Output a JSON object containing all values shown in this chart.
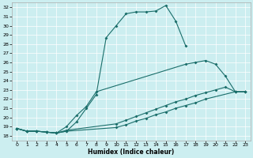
{
  "xlabel": "Humidex (Indice chaleur)",
  "bg_color": "#cceef0",
  "line_color": "#1a6e6a",
  "grid_color": "#ffffff",
  "xlim": [
    -0.5,
    23.5
  ],
  "ylim": [
    17.5,
    32.5
  ],
  "xticks": [
    0,
    1,
    2,
    3,
    4,
    5,
    6,
    7,
    8,
    9,
    10,
    11,
    12,
    13,
    14,
    15,
    16,
    17,
    18,
    19,
    20,
    21,
    22,
    23
  ],
  "yticks": [
    18,
    19,
    20,
    21,
    22,
    23,
    24,
    25,
    26,
    27,
    28,
    29,
    30,
    31,
    32
  ],
  "curve1_x": [
    0,
    1,
    2,
    3,
    4,
    5,
    6,
    7,
    8,
    9,
    10,
    11,
    12,
    13,
    14,
    15,
    16,
    17
  ],
  "curve1_y": [
    18.8,
    18.5,
    18.5,
    18.4,
    18.3,
    18.5,
    19.5,
    21.0,
    22.5,
    28.7,
    30.0,
    31.3,
    31.5,
    31.5,
    31.6,
    32.2,
    30.5,
    27.8
  ],
  "curve2_x": [
    0,
    1,
    2,
    3,
    4,
    5,
    6,
    7,
    8,
    17,
    18,
    19,
    20,
    21,
    22,
    23
  ],
  "curve2_y": [
    18.8,
    18.5,
    18.5,
    18.4,
    18.3,
    19.0,
    20.2,
    21.2,
    22.8,
    25.8,
    26.0,
    26.2,
    25.8,
    24.5,
    22.8,
    22.8
  ],
  "curve3_x": [
    0,
    1,
    2,
    3,
    4,
    5,
    10,
    11,
    12,
    13,
    14,
    15,
    16,
    17,
    18,
    19,
    20,
    21,
    22,
    23
  ],
  "curve3_y": [
    18.8,
    18.5,
    18.5,
    18.4,
    18.3,
    18.6,
    19.3,
    19.7,
    20.1,
    20.5,
    20.9,
    21.3,
    21.7,
    22.0,
    22.4,
    22.7,
    23.0,
    23.3,
    22.8,
    22.8
  ],
  "curve4_x": [
    0,
    1,
    2,
    3,
    4,
    5,
    10,
    11,
    12,
    13,
    14,
    15,
    16,
    17,
    18,
    19,
    22,
    23
  ],
  "curve4_y": [
    18.8,
    18.5,
    18.5,
    18.4,
    18.3,
    18.5,
    18.9,
    19.2,
    19.6,
    19.9,
    20.3,
    20.6,
    21.0,
    21.3,
    21.6,
    22.0,
    22.8,
    22.8
  ]
}
